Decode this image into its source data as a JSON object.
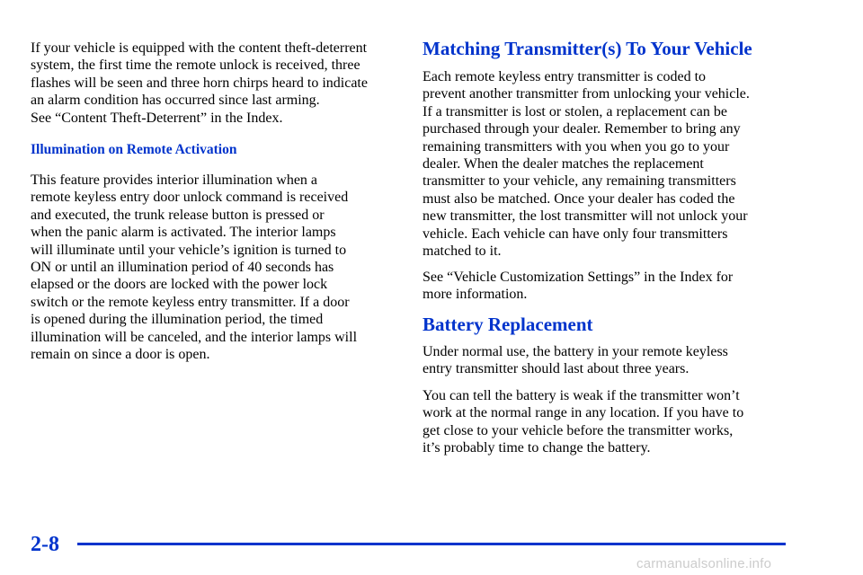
{
  "left_column": {
    "para1": [
      "If your vehicle is equipped with the content theft-deterrent",
      "system, the first time the remote unlock is received, three",
      "flashes will be seen and three horn chirps heard to indicate",
      "an alarm condition has occurred since last arming.",
      "See “Content Theft-Deterrent” in the Index."
    ],
    "subheading": "Illumination on Remote Activation",
    "para2": [
      "This feature provides interior illumination when a",
      "remote keyless entry door unlock command is received",
      "and executed, the trunk release button is pressed or",
      "when the panic alarm is activated. The interior lamps",
      "will illuminate until your vehicle’s ignition is turned to",
      "ON or until an illumination period of 40 seconds has",
      "elapsed or the doors are locked with the power lock",
      "switch or the remote keyless entry transmitter. If a door",
      "is opened during the illumination period, the timed",
      "illumination will be canceled, and the interior lamps will",
      "remain on since a door is open."
    ]
  },
  "right_column": {
    "heading1": "Matching Transmitter(s) To Your Vehicle",
    "para1": [
      "Each remote keyless entry transmitter is coded to",
      "prevent another transmitter from unlocking your vehicle.",
      "If a transmitter is lost or stolen, a replacement can be",
      "purchased through your dealer. Remember to bring any",
      "remaining transmitters with you when you go to your",
      "dealer. When the dealer matches the replacement",
      "transmitter to your vehicle, any remaining transmitters",
      "must also be matched. Once your dealer has coded the",
      "new transmitter, the lost transmitter will not unlock your",
      "vehicle. Each vehicle can have only four transmitters",
      "matched to it."
    ],
    "para2": [
      "See “Vehicle Customization Settings” in the Index for",
      "more information."
    ],
    "heading2": "Battery Replacement",
    "para3": [
      "Under normal use, the battery in your remote keyless",
      "entry transmitter should last about three years."
    ],
    "para4": [
      "You can tell the battery is weak if the transmitter won’t",
      "work at the normal range in any location. If you have to",
      "get close to your vehicle before the transmitter works,",
      "it’s probably time to change the battery."
    ]
  },
  "footer": {
    "page_number": "2-8",
    "watermark": "carmanualsonline.info"
  },
  "colors": {
    "heading": "#0033cc",
    "text": "#000000",
    "watermark": "#cccccc"
  }
}
